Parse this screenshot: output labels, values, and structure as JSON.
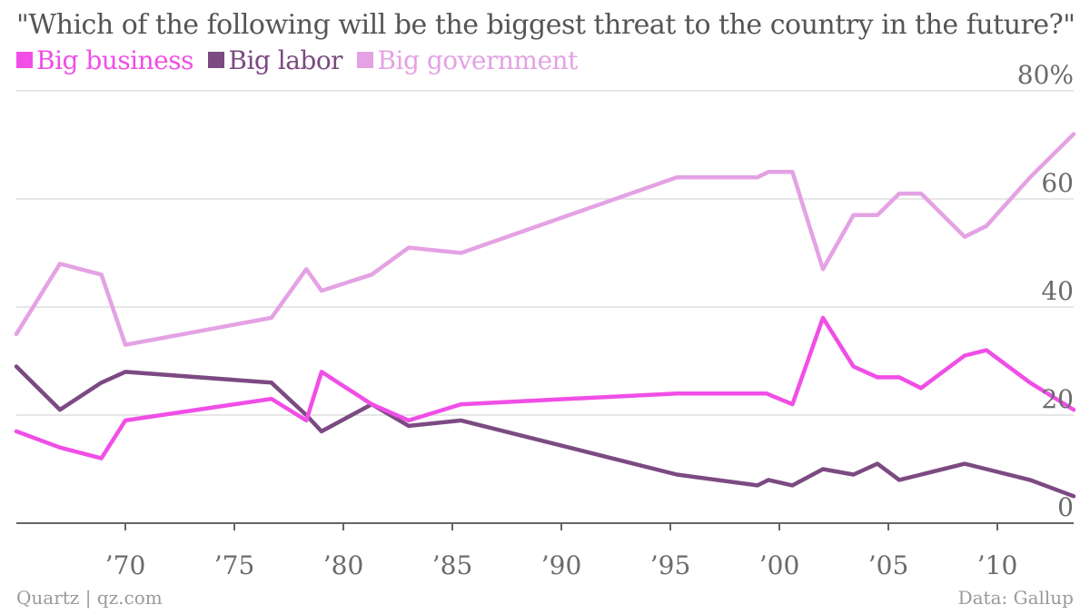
{
  "title": "\"Which of the following will be the biggest threat to the country in the future?\"",
  "footer": {
    "source_left": "Quartz | qz.com",
    "source_right": "Data: Gallup"
  },
  "colors": {
    "business": "#f04ee6",
    "labor": "#7c4a82",
    "government": "#e4a2e4",
    "grid": "#dddddd",
    "axis": "#666666"
  },
  "chart_data": {
    "type": "line",
    "title": "\"Which of the following will be the biggest threat to the country in the future?\"",
    "xlabel": "",
    "ylabel": "",
    "xlim": [
      1965,
      2013.5
    ],
    "ylim": [
      0,
      80
    ],
    "y_ticks": [
      0,
      20,
      40,
      60,
      80
    ],
    "y_tick_labels": [
      "0",
      "20",
      "40",
      "60",
      "80%"
    ],
    "x_ticks": [
      1970,
      1975,
      1980,
      1985,
      1990,
      1995,
      2000,
      2005,
      2010
    ],
    "x_tick_labels": [
      "’70",
      "’75",
      "’80",
      "’85",
      "’90",
      "’95",
      "’00",
      "’05",
      "’10"
    ],
    "grid": true,
    "legend_position": "top-left",
    "series": [
      {
        "name": "Big business",
        "color": "#f04ee6",
        "x": [
          1965,
          1967,
          1968.9,
          1970,
          1976.7,
          1978.3,
          1979,
          1981.3,
          1983,
          1985.4,
          1995.3,
          1999.4,
          2000.6,
          2002,
          2003.4,
          2004.5,
          2005.5,
          2006.5,
          2008.5,
          2009.5,
          2011.5,
          2013.5
        ],
        "values": [
          17,
          14,
          12,
          19,
          23,
          19,
          28,
          22,
          19,
          22,
          24,
          24,
          22,
          38,
          29,
          27,
          27,
          25,
          31,
          32,
          26,
          21
        ]
      },
      {
        "name": "Big labor",
        "color": "#7c4a82",
        "x": [
          1965,
          1967,
          1968.9,
          1970,
          1976.7,
          1978.3,
          1979,
          1981.3,
          1983,
          1985.4,
          1995.3,
          1999,
          1999.5,
          2000.6,
          2002,
          2003.4,
          2004.5,
          2005.5,
          2006.5,
          2008.5,
          2009.5,
          2011.5,
          2013.5
        ],
        "values": [
          29,
          21,
          26,
          28,
          26,
          20,
          17,
          22,
          18,
          19,
          9,
          7,
          8,
          7,
          10,
          9,
          11,
          8,
          9,
          11,
          10,
          8,
          5
        ]
      },
      {
        "name": "Big government",
        "color": "#e4a2e4",
        "x": [
          1965,
          1967,
          1968.9,
          1970,
          1976.7,
          1978.3,
          1979,
          1981.3,
          1983,
          1985.4,
          1995.3,
          1999,
          1999.5,
          2000.6,
          2002,
          2003.4,
          2004.5,
          2005.5,
          2006.5,
          2008.5,
          2009.5,
          2011.5,
          2013.5
        ],
        "values": [
          35,
          48,
          46,
          33,
          38,
          47,
          43,
          46,
          51,
          50,
          64,
          64,
          65,
          65,
          47,
          57,
          57,
          61,
          61,
          53,
          55,
          64,
          72
        ]
      }
    ]
  }
}
